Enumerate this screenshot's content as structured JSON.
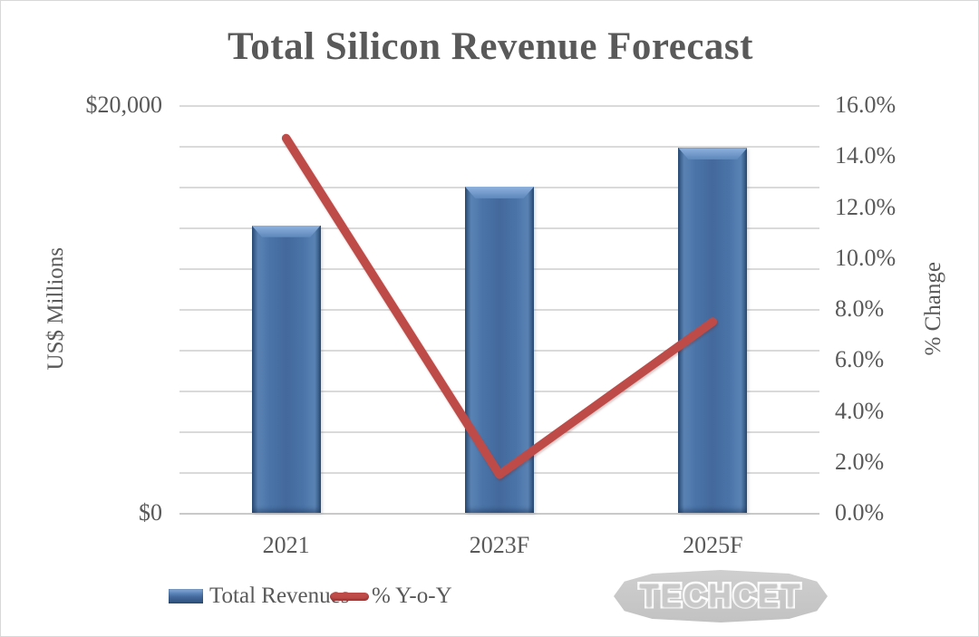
{
  "chart_data": {
    "type": "combo",
    "title": "Total Silicon Revenue Forecast",
    "categories": [
      "2021",
      "2023F",
      "2025F"
    ],
    "series": [
      {
        "name": "Total Revenues",
        "type": "bar",
        "axis": "left",
        "values": [
          14100,
          16000,
          17900
        ],
        "color": "#4a74a8"
      },
      {
        "name": "% Y-o-Y",
        "type": "line",
        "axis": "right",
        "values": [
          14.7,
          1.5,
          7.5
        ],
        "color": "#be4b48"
      }
    ],
    "left_axis": {
      "label": "US$ Millions",
      "range": [
        0,
        20000
      ],
      "tick_labels": [
        "$20,000",
        "$0"
      ],
      "tick_values": [
        20000,
        0
      ]
    },
    "right_axis": {
      "label": "% Change",
      "range": [
        0,
        16
      ],
      "tick_labels": [
        "16.0%",
        "14.0%",
        "12.0%",
        "10.0%",
        "8.0%",
        "6.0%",
        "4.0%",
        "2.0%",
        "0.0%"
      ],
      "tick_values": [
        16,
        14,
        12,
        10,
        8,
        6,
        4,
        2,
        0
      ]
    },
    "gridlines": {
      "horizontal": true,
      "count": 11
    },
    "legend": {
      "position": "bottom",
      "items": [
        "Total Revenues",
        "% Y-o-Y"
      ]
    }
  },
  "watermark": {
    "text": "TECHCET",
    "color": "#c6c6c6"
  },
  "colors": {
    "text": "#595959",
    "grid": "#dadada",
    "bar": "#4a74a8",
    "line": "#be4b48",
    "background": "#ffffff"
  }
}
